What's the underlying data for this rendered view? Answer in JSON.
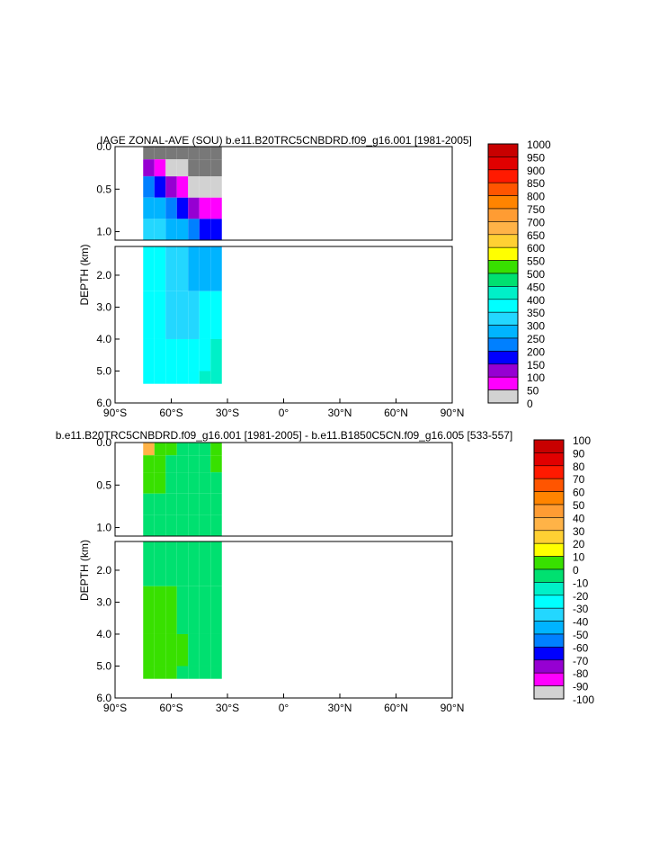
{
  "chart_data": [
    {
      "type": "heatmap",
      "title": "IAGE ZONAL-AVE (SOU) b.e11.B20TRC5CNBDRD.f09_g16.001 [1981-2005]",
      "xlabel": "",
      "ylabel": "DEPTH (km)",
      "x_ticks": [
        {
          "value": -90,
          "label": "90°S"
        },
        {
          "value": -60,
          "label": "60°S"
        },
        {
          "value": -30,
          "label": "30°S"
        },
        {
          "value": 0,
          "label": "0°"
        },
        {
          "value": 30,
          "label": "30°N"
        },
        {
          "value": 60,
          "label": "60°N"
        },
        {
          "value": 90,
          "label": "90°N"
        }
      ],
      "xlim": [
        -90,
        90
      ],
      "upper_y_ticks": [
        {
          "value": 0,
          "label": "0.0"
        },
        {
          "value": 0.5,
          "label": "0.5"
        },
        {
          "value": 1.0,
          "label": "1.0"
        }
      ],
      "lower_y_ticks": [
        {
          "value": 2,
          "label": "2.0"
        },
        {
          "value": 3,
          "label": "3.0"
        },
        {
          "value": 4,
          "label": "4.0"
        },
        {
          "value": 5,
          "label": "5.0"
        },
        {
          "value": 6,
          "label": "6.0"
        }
      ],
      "upper_ylim": [
        0,
        1.1
      ],
      "lower_ylim": [
        1.1,
        6.0
      ],
      "colorbar": {
        "labels": [
          "1000",
          "950",
          "900",
          "850",
          "800",
          "750",
          "700",
          "650",
          "600",
          "550",
          "500",
          "450",
          "400",
          "350",
          "300",
          "250",
          "200",
          "150",
          "100",
          "50",
          "0"
        ],
        "colors": [
          "#c80000",
          "#e10000",
          "#ff1a00",
          "#ff5500",
          "#ff8400",
          "#ff9c33",
          "#ffb347",
          "#ffd033",
          "#ffff00",
          "#38e000",
          "#00e070",
          "#00f0c8",
          "#00ffff",
          "#23d7ff",
          "#00b4ff",
          "#0080ff",
          "#0000ff",
          "#9600d2",
          "#ff00ff",
          "#d2d2d2",
          "#787878"
        ]
      },
      "columns": [
        {
          "lat": -72,
          "values": [
            0,
            150,
            250,
            300,
            350,
            400,
            400,
            400,
            400
          ]
        },
        {
          "lat": -66,
          "values": [
            0,
            100,
            200,
            300,
            350,
            400,
            400,
            400,
            400
          ]
        },
        {
          "lat": -60,
          "values": [
            0,
            50,
            150,
            250,
            300,
            350,
            350,
            400,
            400
          ]
        },
        {
          "lat": -54,
          "values": [
            0,
            50,
            100,
            200,
            300,
            350,
            350,
            400,
            400
          ]
        },
        {
          "lat": -48,
          "values": [
            0,
            0,
            50,
            150,
            250,
            300,
            350,
            400,
            400
          ]
        },
        {
          "lat": -42,
          "values": [
            0,
            0,
            50,
            100,
            200,
            300,
            400,
            400,
            450
          ]
        },
        {
          "lat": -36,
          "values": [
            0,
            0,
            50,
            100,
            200,
            300,
            400,
            450,
            450
          ]
        }
      ]
    },
    {
      "type": "heatmap",
      "title": "b.e11.B20TRC5CNBDRD.f09_g16.001 [1981-2005] - b.e11.B1850C5CN.f09_g16.005 [533-557]",
      "xlabel": "",
      "ylabel": "DEPTH (km)",
      "x_ticks": [
        {
          "value": -90,
          "label": "90°S"
        },
        {
          "value": -60,
          "label": "60°S"
        },
        {
          "value": -30,
          "label": "30°S"
        },
        {
          "value": 0,
          "label": "0°"
        },
        {
          "value": 30,
          "label": "30°N"
        },
        {
          "value": 60,
          "label": "60°N"
        },
        {
          "value": 90,
          "label": "90°N"
        }
      ],
      "xlim": [
        -90,
        90
      ],
      "upper_y_ticks": [
        {
          "value": 0,
          "label": "0.0"
        },
        {
          "value": 0.5,
          "label": "0.5"
        },
        {
          "value": 1.0,
          "label": "1.0"
        }
      ],
      "lower_y_ticks": [
        {
          "value": 2,
          "label": "2.0"
        },
        {
          "value": 3,
          "label": "3.0"
        },
        {
          "value": 4,
          "label": "4.0"
        },
        {
          "value": 5,
          "label": "5.0"
        },
        {
          "value": 6,
          "label": "6.0"
        }
      ],
      "upper_ylim": [
        0,
        1.1
      ],
      "lower_ylim": [
        1.1,
        6.0
      ],
      "colorbar": {
        "labels": [
          "100",
          "90",
          "80",
          "70",
          "60",
          "50",
          "40",
          "30",
          "20",
          "10",
          "0",
          "-10",
          "-20",
          "-30",
          "-40",
          "-50",
          "-60",
          "-70",
          "-80",
          "-90",
          "-100"
        ],
        "colors": [
          "#c80000",
          "#e10000",
          "#ff1a00",
          "#ff5500",
          "#ff8400",
          "#ff9c33",
          "#ffb347",
          "#ffd033",
          "#ffff00",
          "#38e000",
          "#00e070",
          "#00f0c8",
          "#00ffff",
          "#23d7ff",
          "#00b4ff",
          "#0080ff",
          "#0000ff",
          "#9600d2",
          "#ff00ff",
          "#d2d2d2",
          "#787878"
        ]
      },
      "columns": [
        {
          "lat": -72,
          "values": [
            40,
            10,
            10,
            0,
            0,
            0,
            10,
            10,
            10
          ]
        },
        {
          "lat": -66,
          "values": [
            10,
            10,
            10,
            0,
            0,
            0,
            10,
            10,
            10
          ]
        },
        {
          "lat": -60,
          "values": [
            10,
            0,
            0,
            0,
            0,
            0,
            10,
            10,
            10
          ]
        },
        {
          "lat": -54,
          "values": [
            0,
            0,
            0,
            0,
            0,
            0,
            0,
            10,
            0
          ]
        },
        {
          "lat": -48,
          "values": [
            0,
            0,
            0,
            0,
            0,
            0,
            0,
            0,
            0
          ]
        },
        {
          "lat": -42,
          "values": [
            0,
            0,
            0,
            0,
            0,
            0,
            0,
            0,
            0
          ]
        },
        {
          "lat": -36,
          "values": [
            10,
            10,
            0,
            0,
            0,
            0,
            0,
            0,
            0
          ]
        }
      ]
    }
  ]
}
